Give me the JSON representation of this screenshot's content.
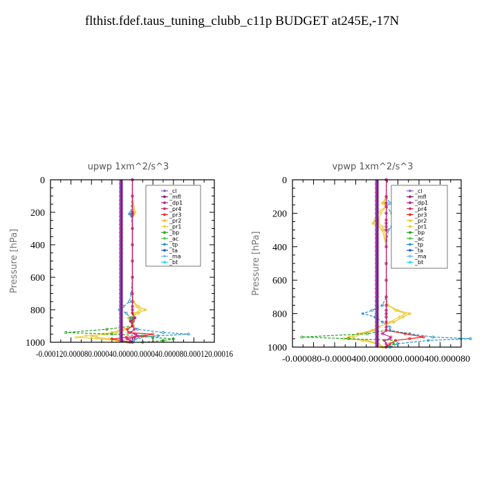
{
  "title": "flthist.fdef.taus_tuning_clubb_c11p  BUDGET at245E,-17N",
  "colors": {
    "_cl": "#8a5cc8",
    "_mfl": "#7a1a7a",
    "_dp1": "#c81a7a",
    "_pr4": "#d02050",
    "_pr3": "#e82020",
    "_pr2": "#f0c020",
    "_pr1": "#e8d040",
    "_bp": "#20a020",
    "_ac": "#40d040",
    "_tp": "#2090c8",
    "_ta": "#2050d0",
    "_ma": "#70c0e8",
    "_bt": "#20e0e0"
  },
  "chart_data": [
    {
      "type": "line",
      "title": "upwp   1xm^2/s^3",
      "ylabel": "Pressure  [hPa]",
      "ylim": [
        0,
        1000
      ],
      "yticks": [
        "0",
        "200",
        "400",
        "600",
        "800",
        "1000"
      ],
      "xlim": [
        -0.00016,
        0.00016
      ],
      "xticks": [
        "-0.00012",
        "-0.00008",
        "-0.00004",
        "0.000000",
        "0.00004",
        "0.00008",
        "0.00012",
        "0.00016"
      ],
      "xtick_text": "-0.000120.000080.000040.00000.000040.000080.000120.00016",
      "legend": [
        "_cl",
        "_mfl",
        "_dp1",
        "_pr4",
        "_pr3",
        "_pr2",
        "_pr1",
        "_bp",
        "_ac",
        "_tp",
        "_ta",
        "_ma",
        "_bt"
      ],
      "legend_position": "top-right",
      "pressure": [
        0,
        100,
        200,
        210,
        220,
        300,
        400,
        500,
        600,
        700,
        750,
        780,
        800,
        820,
        850,
        870,
        900,
        920,
        940,
        950,
        960,
        970,
        980,
        990,
        1000
      ],
      "series": [
        {
          "name": "_pr2",
          "values": [
            0,
            0,
            5e-06,
            3e-06,
            0,
            0,
            0,
            0,
            0,
            0,
            2e-06,
            1.2e-05,
            2.5e-05,
            1.2e-05,
            -8e-06,
            -4e-06,
            2e-06,
            -1.8e-05,
            -4e-05,
            -5.5e-05,
            -8e-05,
            -7e-05,
            -4.5e-05,
            -2e-05,
            -1e-05
          ]
        },
        {
          "name": "_pr1",
          "values": [
            0,
            0,
            3e-06,
            2e-06,
            0,
            0,
            0,
            0,
            0,
            0,
            2e-06,
            8e-06,
            1.5e-05,
            6e-06,
            -4e-06,
            0,
            2e-06,
            -1e-05,
            -3e-05,
            -5e-05,
            -9e-05,
            -0.00011,
            -6e-05,
            -3e-05,
            -1e-05
          ]
        },
        {
          "name": "_tp",
          "values": [
            0,
            0,
            -3e-06,
            -6e-06,
            -2e-06,
            0,
            0,
            0,
            0,
            -2e-06,
            -6e-06,
            -1.8e-05,
            -2.5e-05,
            -1.2e-05,
            -4e-06,
            -3e-06,
            0,
            1e-05,
            6e-05,
            0.00011,
            5e-05,
            1.5e-05,
            6e-06,
            2e-06,
            0
          ]
        },
        {
          "name": "_bp",
          "values": [
            0,
            0,
            0,
            0,
            0,
            0,
            0,
            0,
            0,
            0,
            0,
            0,
            0,
            0,
            0,
            0,
            0,
            -5e-05,
            -0.00013,
            -4e-05,
            2e-05,
            4e-05,
            8e-05,
            6e-05,
            2e-05
          ]
        },
        {
          "name": "_pr3",
          "values": [
            0,
            0,
            0,
            0,
            0,
            0,
            0,
            0,
            0,
            0,
            0,
            0,
            0,
            0,
            4e-06,
            2e-06,
            0,
            -1e-05,
            -8e-06,
            4e-05,
            2.5e-05,
            -1.2e-05,
            -4e-05,
            -2e-05,
            -5e-06
          ]
        },
        {
          "name": "_dp1",
          "values": [
            0,
            0,
            0,
            0,
            0,
            0,
            0,
            0,
            0,
            0,
            0,
            0,
            0,
            0,
            5e-06,
            -4e-06,
            0,
            4e-06,
            -4e-06,
            6e-06,
            1e-05,
            4e-06,
            -1e-05,
            -4e-06,
            0
          ]
        }
      ]
    },
    {
      "type": "line",
      "title": "vpwp   1xm^2/s^3",
      "ylabel": "Pressure  [hPa]",
      "ylim": [
        0,
        1000
      ],
      "yticks": [
        "0",
        "200",
        "400",
        "600",
        "800",
        "1000"
      ],
      "xlim": [
        -0.0001,
        8e-05
      ],
      "xticks": [
        "-0.000080",
        "-0.000040",
        "0.000000",
        "0.000040",
        "0.000080"
      ],
      "xtick_text": "-0.000080-0.0000400.0000000.0000400.000080",
      "legend": [
        "_cl",
        "_mfl",
        "_dp1",
        "_pr4",
        "_pr3",
        "_pr2",
        "_pr1",
        "_bp",
        "_ac",
        "_tp",
        "_ta",
        "_ma",
        "_bt"
      ],
      "legend_position": "top-right",
      "pressure": [
        0,
        100,
        140,
        160,
        200,
        240,
        260,
        280,
        300,
        400,
        500,
        600,
        700,
        750,
        780,
        800,
        820,
        850,
        880,
        900,
        920,
        940,
        950,
        960,
        980,
        1000
      ],
      "series": [
        {
          "name": "_tp",
          "values": [
            0,
            0,
            4e-06,
            0,
            6e-06,
            1.2e-05,
            1.5e-05,
            6e-06,
            2e-06,
            0,
            0,
            0,
            0,
            -4e-06,
            -1.5e-05,
            -2.5e-05,
            -1.2e-05,
            -4e-06,
            4e-06,
            4e-06,
            2.5e-05,
            5e-05,
            9e-05,
            4.5e-05,
            1.2e-05,
            4e-06
          ]
        },
        {
          "name": "_pr2",
          "values": [
            0,
            0,
            -4e-06,
            0,
            -1e-05,
            -1.2e-05,
            -1.4e-05,
            -8e-06,
            -4e-06,
            0,
            0,
            0,
            0,
            2e-06,
            1.2e-05,
            2.5e-05,
            1.8e-05,
            8e-06,
            -1e-05,
            -1.5e-05,
            -3e-05,
            -4e-05,
            -4.5e-05,
            -2.5e-05,
            -1e-05,
            -4e-06
          ]
        },
        {
          "name": "_pr1",
          "values": [
            0,
            0,
            -2e-06,
            0,
            -6e-06,
            -8e-06,
            -8e-06,
            -4e-06,
            -2e-06,
            0,
            0,
            0,
            0,
            2e-06,
            1e-05,
            2e-05,
            1.4e-05,
            4e-06,
            -8e-06,
            -1.2e-05,
            -2.5e-05,
            -3.5e-05,
            -4e-05,
            -2e-05,
            -8e-06,
            -2e-06
          ]
        },
        {
          "name": "_bp",
          "values": [
            0,
            0,
            0,
            0,
            0,
            0,
            0,
            0,
            0,
            0,
            0,
            0,
            0,
            0,
            0,
            0,
            0,
            0,
            0,
            0,
            -2e-05,
            -9e-05,
            -4e-05,
            1e-05,
            8e-06,
            0
          ]
        },
        {
          "name": "_pr3",
          "values": [
            0,
            0,
            0,
            0,
            0,
            0,
            0,
            0,
            0,
            0,
            0,
            0,
            0,
            0,
            0,
            0,
            0,
            0,
            0,
            0,
            2e-05,
            4e-05,
            2.5e-05,
            1e-05,
            4e-06,
            0
          ]
        },
        {
          "name": "_dp1",
          "values": [
            0,
            0,
            0,
            0,
            0,
            0,
            0,
            0,
            0,
            0,
            0,
            0,
            0,
            0,
            0,
            0,
            0,
            0,
            0,
            0,
            -4e-06,
            5e-06,
            4e-06,
            -2e-06,
            0,
            0
          ]
        }
      ]
    }
  ]
}
